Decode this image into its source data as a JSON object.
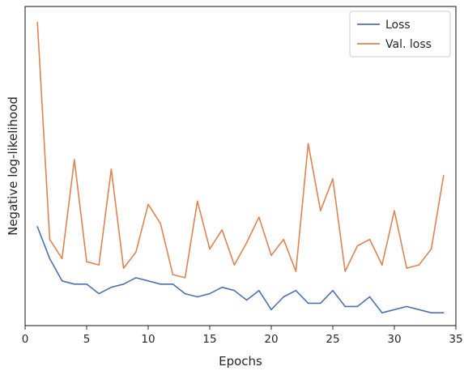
{
  "chart_data": {
    "type": "line",
    "title": "",
    "xlabel": "Epochs",
    "ylabel": "Negative log-likelihood",
    "xlim": [
      0,
      35
    ],
    "xticks": [
      0,
      5,
      10,
      15,
      20,
      25,
      30,
      35
    ],
    "ylim": [
      0,
      1
    ],
    "yticks_shown": false,
    "grid": false,
    "legend_position": "top-right",
    "x": [
      1,
      2,
      3,
      4,
      5,
      6,
      7,
      8,
      9,
      10,
      11,
      12,
      13,
      14,
      15,
      16,
      17,
      18,
      19,
      20,
      21,
      22,
      23,
      24,
      25,
      26,
      27,
      28,
      29,
      30,
      31,
      32,
      33,
      34
    ],
    "series": [
      {
        "name": "Loss",
        "color": "#4c72b0",
        "values": [
          0.31,
          0.21,
          0.14,
          0.13,
          0.13,
          0.1,
          0.12,
          0.13,
          0.15,
          0.14,
          0.13,
          0.13,
          0.1,
          0.09,
          0.1,
          0.12,
          0.11,
          0.08,
          0.11,
          0.05,
          0.09,
          0.11,
          0.07,
          0.07,
          0.11,
          0.06,
          0.06,
          0.09,
          0.04,
          0.05,
          0.06,
          0.05,
          0.04,
          0.04
        ]
      },
      {
        "name": "Val. loss",
        "color": "#dd8452",
        "values": [
          0.95,
          0.27,
          0.21,
          0.52,
          0.2,
          0.19,
          0.49,
          0.18,
          0.23,
          0.38,
          0.32,
          0.16,
          0.15,
          0.39,
          0.24,
          0.3,
          0.19,
          0.26,
          0.34,
          0.22,
          0.27,
          0.17,
          0.57,
          0.36,
          0.46,
          0.17,
          0.25,
          0.27,
          0.19,
          0.36,
          0.18,
          0.19,
          0.24,
          0.47
        ]
      }
    ]
  }
}
